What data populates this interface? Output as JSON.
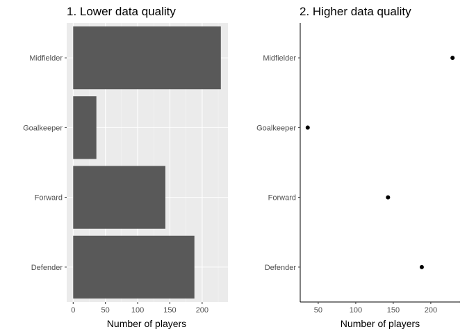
{
  "chart_data": [
    {
      "type": "bar",
      "orientation": "horizontal",
      "title": "1. Lower data quality",
      "xlabel": "Number of players",
      "ylabel": "",
      "categories": [
        "Defender",
        "Forward",
        "Goalkeeper",
        "Midfielder"
      ],
      "values": [
        188,
        143,
        36,
        229
      ],
      "xlim": [
        -10,
        240
      ],
      "xticks": [
        0,
        50,
        100,
        150,
        200
      ],
      "xtick_labels": [
        "0",
        "50",
        "100",
        "150",
        "200"
      ],
      "grid": true,
      "background": "#ebebeb",
      "bar_color": "#595959"
    },
    {
      "type": "scatter",
      "title": "2. Higher data quality",
      "xlabel": "Number of players",
      "ylabel": "",
      "categories": [
        "Defender",
        "Forward",
        "Goalkeeper",
        "Midfielder"
      ],
      "values": [
        188,
        143,
        36,
        229
      ],
      "xlim": [
        26,
        239
      ],
      "xticks": [
        50,
        100,
        150,
        200
      ],
      "xtick_labels": [
        "50",
        "100",
        "150",
        "200"
      ],
      "grid": false,
      "background": "#ffffff",
      "point_color": "#000000"
    }
  ]
}
